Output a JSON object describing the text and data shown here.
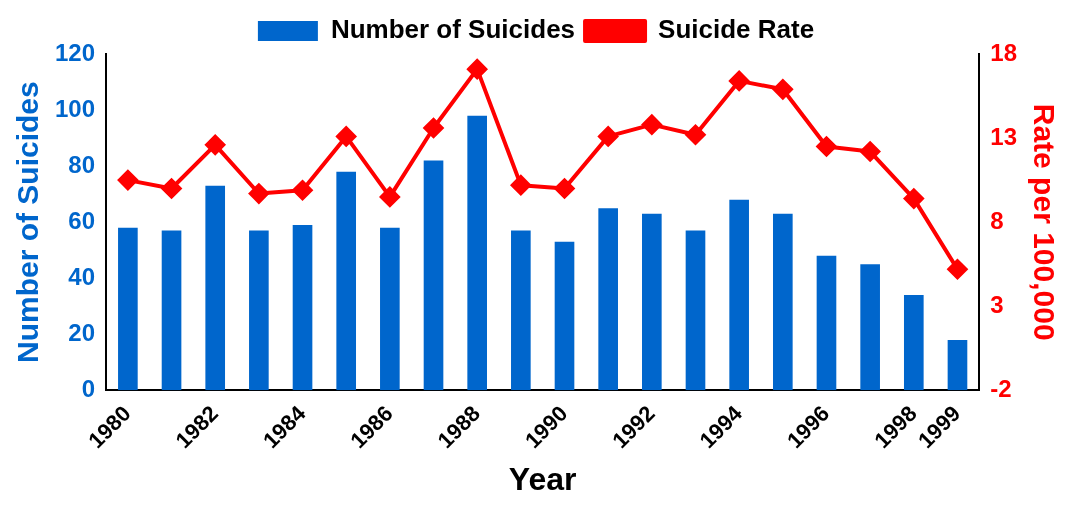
{
  "chart_data": {
    "type": "bar",
    "xlabel": "Year",
    "ylabel": "Number of Suicides",
    "y2label": "Rate per 100,000",
    "categories": [
      "1980",
      null,
      "1982",
      null,
      "1984",
      null,
      "1986",
      null,
      "1988",
      null,
      "1990",
      null,
      "1992",
      null,
      "1994",
      null,
      "1996",
      null,
      "1998",
      "1999"
    ],
    "series": [
      {
        "name": "Number of Suicides",
        "color": "#0066cc",
        "values": [
          58,
          57,
          73,
          57,
          59,
          78,
          58,
          82,
          98,
          57,
          53,
          65,
          63,
          57,
          68,
          63,
          48,
          45,
          34,
          18
        ]
      },
      {
        "name": "Suicide Rate",
        "type": "line",
        "axis": "y2",
        "color": "#ff0000",
        "marker": "diamond",
        "values": [
          10.5,
          10.0,
          12.6,
          9.7,
          9.9,
          13.1,
          9.5,
          13.6,
          17.1,
          10.2,
          10.0,
          13.1,
          13.8,
          13.2,
          16.4,
          15.9,
          12.5,
          12.2,
          9.4,
          5.2
        ]
      }
    ],
    "ylim": [
      0,
      120
    ],
    "yticks": [
      0,
      20,
      40,
      60,
      80,
      100,
      120
    ],
    "y2lim": [
      -2,
      18
    ],
    "y2ticks": [
      -2,
      3,
      8,
      13,
      18
    ],
    "grid": false,
    "legend": "top"
  }
}
